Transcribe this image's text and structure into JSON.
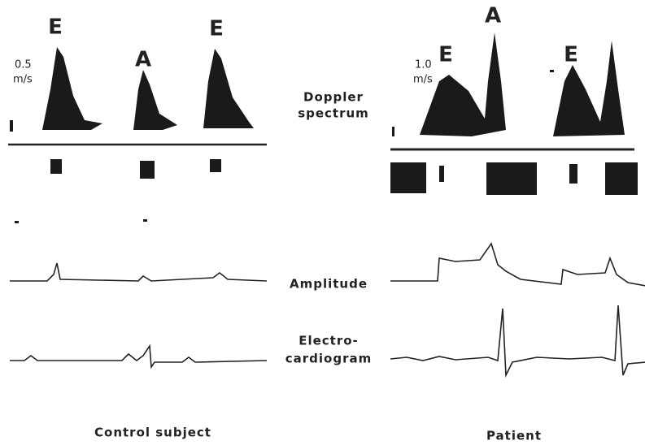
{
  "left": {
    "peak_labels": [
      "E",
      "A",
      "E"
    ],
    "scale": [
      "0.5",
      "m/s"
    ],
    "caption": "Control subject"
  },
  "right": {
    "peak_labels": [
      "E",
      "A",
      "E"
    ],
    "scale": [
      "1.0",
      "m/s"
    ],
    "caption": "Patient"
  },
  "labels": {
    "doppler": [
      "Doppler",
      "spectrum"
    ],
    "amplitude": "Amplitude",
    "ecg": [
      "Electro-",
      "cardiogram"
    ]
  }
}
